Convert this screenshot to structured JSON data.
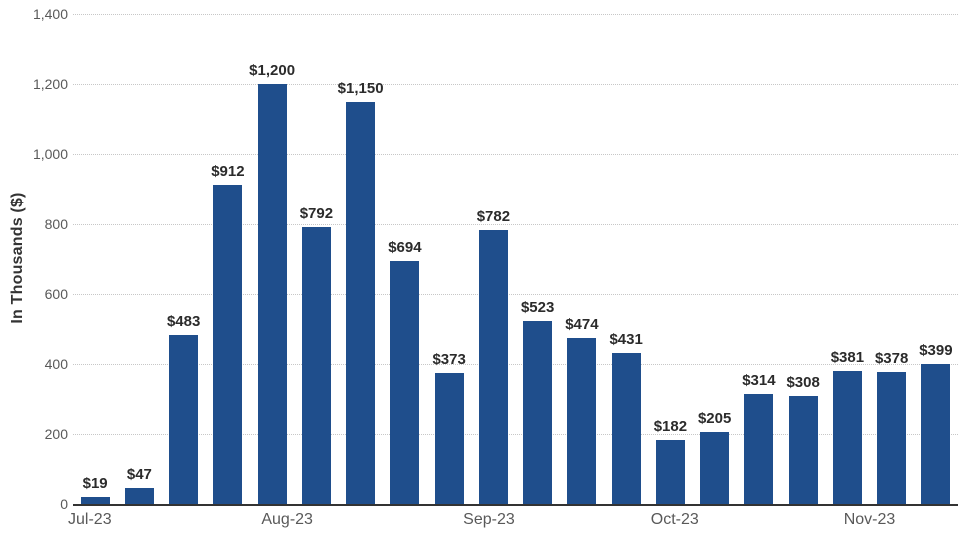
{
  "chart_data": {
    "type": "bar",
    "title": "",
    "xlabel": "",
    "ylabel": "In Thousands ($)",
    "ylim": [
      0,
      1400
    ],
    "grid": "horizontal-dotted",
    "legend": "none",
    "bar_color": "#1f4e8c",
    "axis_line_color": "#333333",
    "gridline_color": "#c7c7c7",
    "value_label_color": "#2b2b2b",
    "tick_label_color": "#595959",
    "y_ticks": [
      0,
      200,
      400,
      600,
      800,
      1000,
      1200,
      1400
    ],
    "y_tick_labels": [
      "0",
      "200",
      "400",
      "600",
      "800",
      "1,000",
      "1,200",
      "1,400"
    ],
    "values": [
      19,
      47,
      483,
      912,
      1200,
      792,
      1150,
      694,
      373,
      782,
      523,
      474,
      431,
      182,
      205,
      314,
      308,
      381,
      378,
      399
    ],
    "value_labels": [
      "$19",
      "$47",
      "$483",
      "$912",
      "$1,200",
      "$792",
      "$1,150",
      "$694",
      "$373",
      "$782",
      "$523",
      "$474",
      "$431",
      "$182",
      "$205",
      "$314",
      "$308",
      "$381",
      "$378",
      "$399"
    ],
    "x_axis_labels": [
      {
        "label": "Jul-23",
        "position_pct": 1.9
      },
      {
        "label": "Aug-23",
        "position_pct": 24.2
      },
      {
        "label": "Sep-23",
        "position_pct": 47.0
      },
      {
        "label": "Oct-23",
        "position_pct": 68.0
      },
      {
        "label": "Nov-23",
        "position_pct": 90.0
      }
    ]
  }
}
